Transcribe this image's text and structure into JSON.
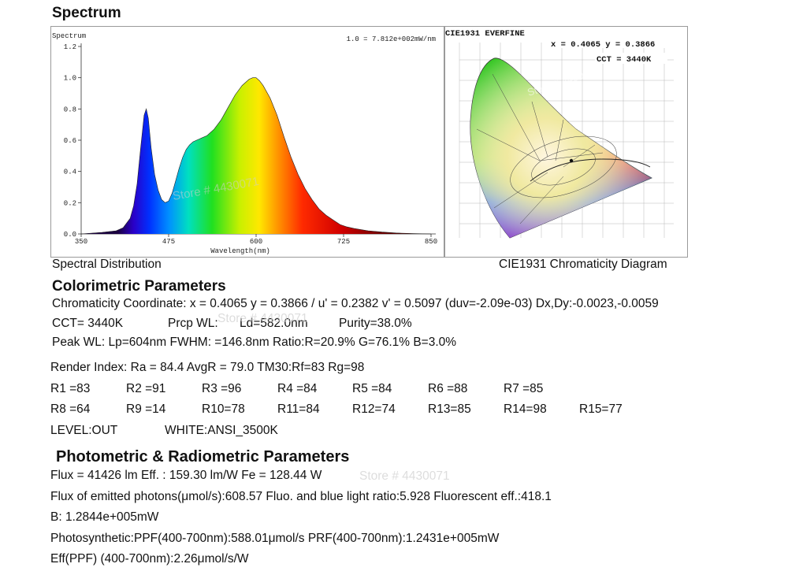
{
  "sections": {
    "spectrum_title": "Spectrum",
    "colorimetric_title": "Colorimetric Parameters",
    "photometric_title": "Photometric & Radiometric Parameters"
  },
  "captions": {
    "spectral": "Spectral Distribution",
    "cie": "CIE1931 Chromaticity Diagram"
  },
  "spectrum_chart": {
    "corner_label": "Spectrum",
    "scale_note": "1.0 = 7.812e+002mW/nm"
  },
  "cie_chart": {
    "header": "CIE1931  EVERFINE",
    "coords": "x = 0.4065 y = 0.3866",
    "cct": "CCT = 3440K"
  },
  "watermark": "Store # 4430071",
  "colorimetric": {
    "chromaticity": "Chromaticity Coordinate: x = 0.4065 y = 0.3866 / u' = 0.2382 v' = 0.5097 (duv=-2.09e-03)   Dx,Dy:-0.0023,-0.0059",
    "cct": "CCT=  3440K",
    "prcp": "Prcp WL:",
    "ld": "Ld=582.0nm",
    "purity": "Purity=38.0%",
    "peak": "Peak WL:  Lp=604nm  FWHM:   =146.8nm  Ratio:R=20.9% G=76.1% B=3.0%",
    "render": "Render Index: Ra = 84.4 AvgR = 79.0 TM30:Rf=83 Rg=98",
    "r_row1": [
      "R1 =83",
      "R2 =91",
      "R3 =96",
      "R4 =84",
      "R5 =84",
      "R6 =88",
      "R7 =85"
    ],
    "r_row2": [
      "R8 =64",
      "R9 =14",
      "R10=78",
      "R11=84",
      "R12=74",
      "R13=85",
      "R14=98",
      "R15=77"
    ],
    "level": "LEVEL:OUT",
    "white": "WHITE:ANSI_3500K"
  },
  "photometric": {
    "flux": "Flux  = 41426 lm   Eff. : 159.30 lm/W  Fe  = 128.44 W",
    "photons": "Flux of emitted photons(μmol/s):608.57    Fluo. and blue light ratio:5.928   Fluorescent eff.:418.1",
    "b": "B: 1.2844e+005mW",
    "ppf": "Photosynthetic:PPF(400-700nm):588.01μmol/s PRF(400-700nm):1.2431e+005mW",
    "eff": "Eff(PPF) (400-700nm):2.26μmol/s/W"
  },
  "chart_data": {
    "type": "area",
    "title": "Spectrum",
    "xlabel": "Wavelength(nm)",
    "ylabel": "",
    "xlim": [
      350,
      850
    ],
    "ylim": [
      0,
      1.2
    ],
    "xticks": [
      350,
      475,
      600,
      725,
      850
    ],
    "yticks": [
      0.0,
      0.2,
      0.4,
      0.6,
      0.8,
      1.0,
      1.2
    ],
    "ytick_labels": [
      "0.0",
      "0.2",
      "0.4",
      "0.6",
      "0.8",
      "1.0",
      "1.2"
    ],
    "grid": false,
    "series": [
      {
        "values_x": [
          350,
          380,
          400,
          410,
          420,
          425,
          430,
          435,
          440,
          443,
          446,
          450,
          455,
          460,
          465,
          470,
          475,
          480,
          485,
          490,
          495,
          500,
          505,
          510,
          515,
          520,
          530,
          540,
          550,
          560,
          570,
          580,
          590,
          595,
          600,
          605,
          610,
          620,
          630,
          640,
          650,
          660,
          670,
          680,
          690,
          700,
          710,
          720,
          730,
          740,
          760,
          780,
          800,
          825,
          850
        ],
        "values_y": [
          0.0,
          0.01,
          0.02,
          0.04,
          0.1,
          0.18,
          0.32,
          0.55,
          0.76,
          0.8,
          0.74,
          0.55,
          0.38,
          0.28,
          0.22,
          0.2,
          0.21,
          0.26,
          0.34,
          0.42,
          0.49,
          0.54,
          0.57,
          0.59,
          0.6,
          0.61,
          0.63,
          0.67,
          0.73,
          0.81,
          0.89,
          0.95,
          0.99,
          1.0,
          1.0,
          0.98,
          0.95,
          0.87,
          0.76,
          0.62,
          0.49,
          0.38,
          0.29,
          0.22,
          0.16,
          0.12,
          0.09,
          0.06,
          0.045,
          0.035,
          0.02,
          0.012,
          0.006,
          0.002,
          0.0
        ]
      }
    ]
  }
}
